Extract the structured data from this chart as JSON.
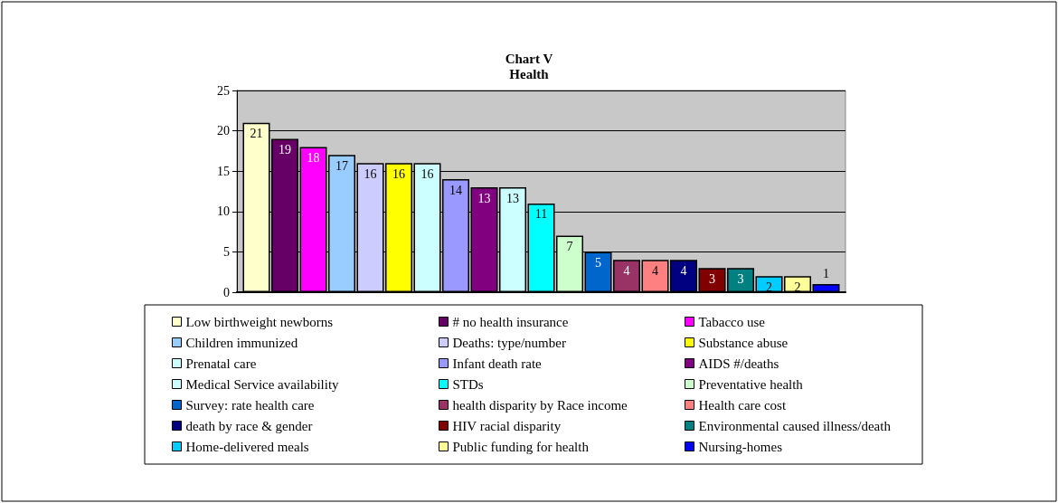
{
  "chart_data": {
    "type": "bar",
    "title": "Chart V",
    "subtitle": "Health",
    "categories": [
      null
    ],
    "series": [
      {
        "name": "Low birthweight newborns",
        "color": "#ffffcc",
        "values": [
          21
        ]
      },
      {
        "name": "# no health insurance",
        "color": "#660066",
        "values": [
          19
        ]
      },
      {
        "name": "Tabacco use",
        "color": "#ff00ff",
        "values": [
          18
        ]
      },
      {
        "name": "Children immunized",
        "color": "#99ccff",
        "values": [
          17
        ]
      },
      {
        "name": "Deaths: type/number",
        "color": "#ccccff",
        "values": [
          16
        ]
      },
      {
        "name": "Substance abuse",
        "color": "#ffff00",
        "values": [
          16
        ]
      },
      {
        "name": "Prenatal care",
        "color": "#ccffff",
        "values": [
          16
        ]
      },
      {
        "name": "Infant death rate",
        "color": "#9999ff",
        "values": [
          14
        ]
      },
      {
        "name": "AIDS #/deaths",
        "color": "#800080",
        "values": [
          13
        ]
      },
      {
        "name": "Medical Service availability",
        "color": "#ccffff",
        "values": [
          13
        ]
      },
      {
        "name": "STDs",
        "color": "#00ffff",
        "values": [
          11
        ]
      },
      {
        "name": "Preventative health",
        "color": "#ccffcc",
        "values": [
          7
        ]
      },
      {
        "name": "Survey: rate health care",
        "color": "#0066cc",
        "values": [
          5
        ]
      },
      {
        "name": "health disparity by Race income",
        "color": "#993366",
        "values": [
          4
        ]
      },
      {
        "name": "Health care cost",
        "color": "#ff8080",
        "values": [
          4
        ]
      },
      {
        "name": "death by race & gender",
        "color": "#000080",
        "values": [
          4
        ]
      },
      {
        "name": "HIV racial disparity",
        "color": "#800000",
        "values": [
          3
        ]
      },
      {
        "name": "Environmental caused illness/death",
        "color": "#008080",
        "values": [
          3
        ]
      },
      {
        "name": "Home-delivered meals",
        "color": "#00ccff",
        "values": [
          2
        ]
      },
      {
        "name": "Public funding for health",
        "color": "#ffff99",
        "values": [
          2
        ]
      },
      {
        "name": "Nursing-homes",
        "color": "#0000ff",
        "values": [
          1
        ]
      }
    ],
    "ylim": [
      0,
      25
    ],
    "yticks": [
      0,
      5,
      10,
      15,
      20,
      25
    ],
    "grid": "y",
    "legend": "bottom",
    "data_labels": true
  }
}
